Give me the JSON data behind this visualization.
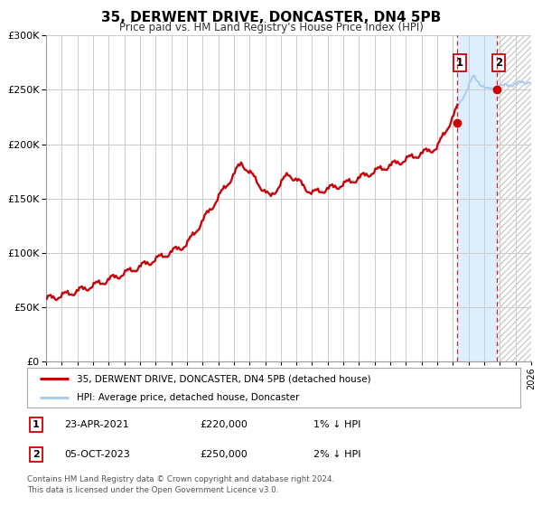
{
  "title": "35, DERWENT DRIVE, DONCASTER, DN4 5PB",
  "subtitle": "Price paid vs. HM Land Registry's House Price Index (HPI)",
  "legend_line1": "35, DERWENT DRIVE, DONCASTER, DN4 5PB (detached house)",
  "legend_line2": "HPI: Average price, detached house, Doncaster",
  "annotation1_label": "1",
  "annotation1_date": "23-APR-2021",
  "annotation1_price": "£220,000",
  "annotation1_hpi": "1% ↓ HPI",
  "annotation2_label": "2",
  "annotation2_date": "05-OCT-2023",
  "annotation2_price": "£250,000",
  "annotation2_hpi": "2% ↓ HPI",
  "footer1": "Contains HM Land Registry data © Crown copyright and database right 2024.",
  "footer2": "This data is licensed under the Open Government Licence v3.0.",
  "sale1_year": 2021,
  "sale1_month": 4,
  "sale1_price": 220000,
  "sale2_year": 2023,
  "sale2_month": 10,
  "sale2_price": 250000,
  "xmin": 1995,
  "xmax": 2026,
  "ymin": 0,
  "ymax": 300000,
  "yticks": [
    0,
    50000,
    100000,
    150000,
    200000,
    250000,
    300000
  ],
  "red_line_color": "#cc0000",
  "blue_line_color": "#aaccee",
  "highlight_color": "#ddeeff",
  "hatch_color": "#cccccc",
  "grid_color": "#cccccc",
  "background_color": "#ffffff"
}
